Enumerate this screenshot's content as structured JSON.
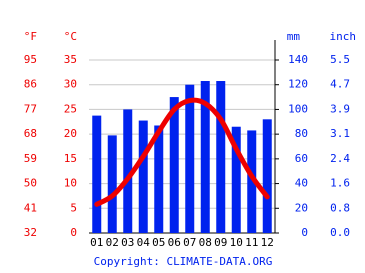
{
  "chart_data": {
    "type": "climate",
    "categories": [
      "01",
      "02",
      "03",
      "04",
      "05",
      "06",
      "07",
      "08",
      "09",
      "10",
      "11",
      "12"
    ],
    "series": [
      {
        "name": "mm",
        "type": "bar",
        "axis": "y2",
        "color": "#0022ee",
        "values": [
          95,
          79,
          100,
          91,
          87,
          110,
          120,
          123,
          123,
          86,
          83,
          92
        ]
      },
      {
        "name": "°C",
        "type": "line",
        "axis": "y",
        "color": "#ee0000",
        "values": [
          5.8,
          7.5,
          11,
          15.5,
          20.5,
          25,
          26.8,
          26.2,
          23,
          17,
          11.5,
          7.3
        ]
      }
    ],
    "ylim": [
      0,
      35
    ],
    "yticks": [
      0,
      5,
      10,
      15,
      20,
      25,
      30,
      35
    ],
    "y_label": "°C",
    "y2lim": [
      0,
      140
    ],
    "y2ticks": [
      0,
      20,
      40,
      60,
      80,
      100,
      120,
      140
    ],
    "y2_label": "mm",
    "y3lim": [
      32,
      95
    ],
    "y3ticks": [
      32,
      41,
      50,
      59,
      68,
      77,
      86,
      95
    ],
    "y3_label": "°F",
    "y4lim": [
      0,
      5.512
    ],
    "y4ticks": [
      {
        "value": 0,
        "label": "0.0"
      },
      {
        "value": 0.787,
        "label": "0.8"
      },
      {
        "value": 1.575,
        "label": "1.6"
      },
      {
        "value": 2.362,
        "label": "2.4"
      },
      {
        "value": 3.149,
        "label": "3.1"
      },
      {
        "value": 3.937,
        "label": "3.9"
      },
      {
        "value": 4.724,
        "label": "4.7"
      },
      {
        "value": 5.512,
        "label": "5.5"
      }
    ],
    "y4_label": "inch",
    "grid": true,
    "footer": "Copyright: CLIMATE-DATA.ORG"
  }
}
